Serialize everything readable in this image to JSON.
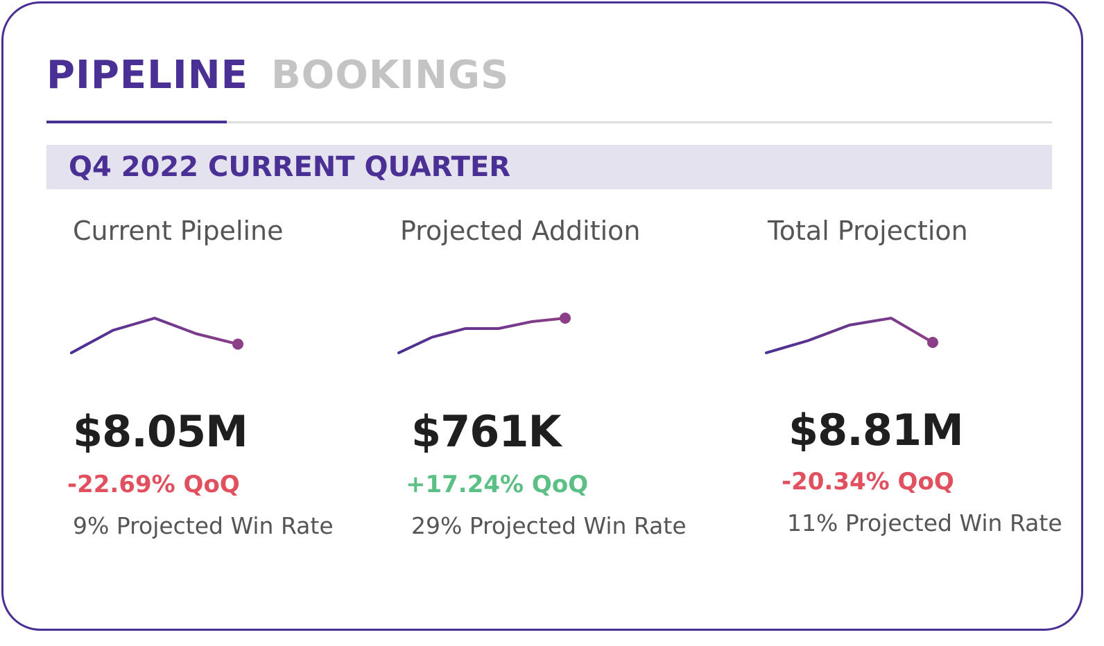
{
  "tabs": {
    "pipeline": "PIPELINE",
    "bookings": "BOOKINGS",
    "active": "pipeline"
  },
  "section": {
    "title": "Q4 2022 CURRENT QUARTER"
  },
  "colors": {
    "accent": "#4a2f94",
    "inactive_tab": "#c4c4c4",
    "band": "#e5e2ef",
    "negative": "#e0505f",
    "positive": "#5cbf86",
    "spark_start": "#4a2f94",
    "spark_end": "#8b3f86"
  },
  "metrics": [
    {
      "title": "Current Pipeline",
      "value": "$8.05M",
      "change": "-22.69% QoQ",
      "trend": "negative",
      "win_rate": "9% Projected Win Rate",
      "sparkline": [
        0.0,
        0.65,
        1.0,
        0.55,
        0.25
      ]
    },
    {
      "title": "Projected Addition",
      "value": "$761K",
      "change": "+17.24% QoQ",
      "trend": "positive",
      "win_rate": "29% Projected Win Rate",
      "sparkline": [
        0.0,
        0.45,
        0.7,
        0.7,
        0.9,
        1.0
      ]
    },
    {
      "title": "Total Projection",
      "value": "$8.81M",
      "change": "-20.34% QoQ",
      "trend": "negative",
      "win_rate": "11% Projected Win Rate",
      "sparkline": [
        0.0,
        0.35,
        0.8,
        1.0,
        0.3
      ]
    }
  ]
}
